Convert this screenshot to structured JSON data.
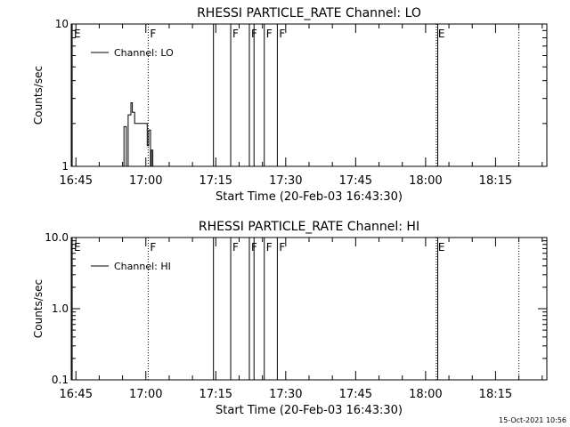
{
  "stamp": "15-Oct-2021 10:56",
  "chart_data": [
    {
      "type": "line",
      "title": "RHESSI PARTICLE_RATE Channel: LO",
      "xlabel": "Start Time (20-Feb-03 16:43:30)",
      "ylabel": "Counts/sec",
      "y_scale": "log",
      "ylim": [
        1,
        10
      ],
      "y_ticks": [
        {
          "v": 1,
          "label": "1"
        },
        {
          "v": 10,
          "label": "10"
        }
      ],
      "xlim": [
        "16:44",
        "18:26"
      ],
      "x_ticks": [
        "16:45",
        "17:00",
        "17:15",
        "17:30",
        "17:45",
        "18:00",
        "18:15"
      ],
      "legend": {
        "label": "Channel: LO",
        "placement": "top-left"
      },
      "flag_lines": [
        {
          "t": "16:44.2",
          "style": "solid",
          "label": "E"
        },
        {
          "t": "17:00.5",
          "style": "dotted",
          "label": "F"
        },
        {
          "t": "17:14.5",
          "style": "solid",
          "label": ""
        },
        {
          "t": "17:18.2",
          "style": "solid",
          "label": "F"
        },
        {
          "t": "17:22.2",
          "style": "solid",
          "label": "F"
        },
        {
          "t": "17:23.2",
          "style": "solid",
          "label": ""
        },
        {
          "t": "17:25.4",
          "style": "solid",
          "label": "F"
        },
        {
          "t": "17:28.2",
          "style": "solid",
          "label": "F"
        },
        {
          "t": "18:02.3",
          "style": "dotted",
          "label": "E"
        },
        {
          "t": "18:02.6",
          "style": "solid",
          "label": ""
        },
        {
          "t": "18:20",
          "style": "dotted",
          "label": ""
        }
      ],
      "series": [
        {
          "x": [
            "16:55.3",
            "16:55.3",
            "16:55.8",
            "16:55.8",
            "16:56.2",
            "16:56.2",
            "16:56.8",
            "16:56.8",
            "16:57.1",
            "16:57.1",
            "16:57.6",
            "16:57.6",
            "17:00.3",
            "17:00.3",
            "17:00.6",
            "17:00.6",
            "17:01.0",
            "17:01.0",
            "17:01.2",
            "17:01.2",
            "17:01.5",
            "17:01.5"
          ],
          "y": [
            1,
            1.9,
            1.9,
            1,
            1,
            2.3,
            2.3,
            2.8,
            2.8,
            2.4,
            2.4,
            2,
            2,
            1.4,
            1.4,
            1.8,
            1.8,
            1,
            1,
            1.3,
            1.3,
            1
          ]
        }
      ]
    },
    {
      "type": "line",
      "title": "RHESSI PARTICLE_RATE Channel: HI",
      "xlabel": "Start Time (20-Feb-03 16:43:30)",
      "ylabel": "Counts/sec",
      "y_scale": "log",
      "ylim": [
        0.1,
        10
      ],
      "y_ticks": [
        {
          "v": 0.1,
          "label": "0.1"
        },
        {
          "v": 1,
          "label": "1.0"
        },
        {
          "v": 10,
          "label": "10.0"
        }
      ],
      "xlim": [
        "16:44",
        "18:26"
      ],
      "x_ticks": [
        "16:45",
        "17:00",
        "17:15",
        "17:30",
        "17:45",
        "18:00",
        "18:15"
      ],
      "legend": {
        "label": "Channel: HI",
        "placement": "top-left"
      },
      "flag_lines": [
        {
          "t": "16:44.2",
          "style": "solid",
          "label": "E"
        },
        {
          "t": "17:00.5",
          "style": "dotted",
          "label": "F"
        },
        {
          "t": "17:14.5",
          "style": "solid",
          "label": ""
        },
        {
          "t": "17:18.2",
          "style": "solid",
          "label": "F"
        },
        {
          "t": "17:22.2",
          "style": "solid",
          "label": "F"
        },
        {
          "t": "17:23.2",
          "style": "solid",
          "label": ""
        },
        {
          "t": "17:25.4",
          "style": "solid",
          "label": "F"
        },
        {
          "t": "17:28.2",
          "style": "solid",
          "label": "F"
        },
        {
          "t": "18:02.3",
          "style": "dotted",
          "label": "E"
        },
        {
          "t": "18:02.6",
          "style": "solid",
          "label": ""
        },
        {
          "t": "18:20",
          "style": "dotted",
          "label": ""
        }
      ],
      "series": [
        {
          "x": [],
          "y": []
        }
      ]
    }
  ]
}
